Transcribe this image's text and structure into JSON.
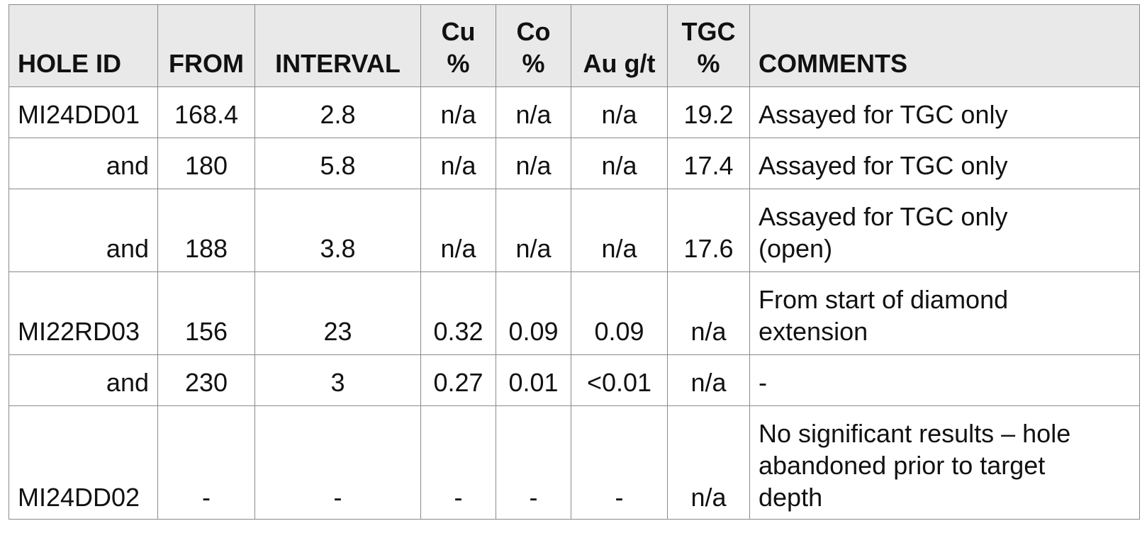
{
  "table": {
    "headers": {
      "hole_id": "HOLE ID",
      "from": "FROM",
      "interval": "INTERVAL",
      "cu_line1": "Cu",
      "cu_line2": "%",
      "co_line1": "Co",
      "co_line2": "%",
      "au": "Au g/t",
      "tgc_line1": "TGC",
      "tgc_line2": "%",
      "comments": "COMMENTS"
    },
    "rows": [
      {
        "hole_id": "MI24DD01",
        "from": "168.4",
        "interval": "2.8",
        "cu": "n/a",
        "co": "n/a",
        "au": "n/a",
        "tgc": "19.2",
        "comment_line1": "Assayed for TGC only",
        "comment_line2": "",
        "comment_line3": ""
      },
      {
        "hole_id": "and",
        "from": "180",
        "interval": "5.8",
        "cu": "n/a",
        "co": "n/a",
        "au": "n/a",
        "tgc": "17.4",
        "comment_line1": "Assayed for TGC only",
        "comment_line2": "",
        "comment_line3": ""
      },
      {
        "hole_id": "and",
        "from": "188",
        "interval": "3.8",
        "cu": "n/a",
        "co": "n/a",
        "au": "n/a",
        "tgc": "17.6",
        "comment_line1": "Assayed for TGC only",
        "comment_line2": "(open)",
        "comment_line3": ""
      },
      {
        "hole_id": "MI22RD03",
        "from": "156",
        "interval": "23",
        "cu": "0.32",
        "co": "0.09",
        "au": "0.09",
        "tgc": "n/a",
        "comment_line1": "From start of diamond",
        "comment_line2": "extension",
        "comment_line3": ""
      },
      {
        "hole_id": "and",
        "from": "230",
        "interval": "3",
        "cu": "0.27",
        "co": "0.01",
        "au": "<0.01",
        "tgc": "n/a",
        "comment_line1": "-",
        "comment_line2": "",
        "comment_line3": ""
      },
      {
        "hole_id": "MI24DD02",
        "from": "-",
        "interval": "-",
        "cu": "-",
        "co": "-",
        "au": "-",
        "tgc": "n/a",
        "comment_line1": "No significant results – hole",
        "comment_line2": "abandoned prior to target",
        "comment_line3": "depth"
      }
    ]
  }
}
